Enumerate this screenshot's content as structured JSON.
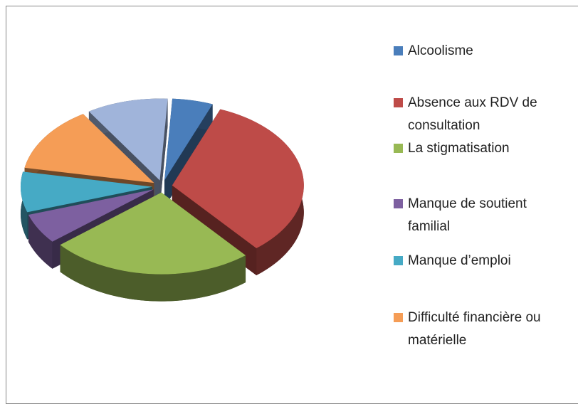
{
  "chart_data": {
    "type": "pie",
    "categories": [
      "Alcoolisme",
      "Absence aux RDV de consultation",
      "La stigmatisation",
      "Manque de soutient familial",
      "Manque d’emploi",
      "Difficulté financière ou matérielle",
      null
    ],
    "values": [
      5,
      33,
      25,
      6,
      8,
      13,
      10
    ],
    "colors": [
      "#4a7ebb",
      "#be4b48",
      "#98b954",
      "#7d60a0",
      "#46aac5",
      "#f59d56",
      "#a0b4da"
    ],
    "legend": "right"
  }
}
